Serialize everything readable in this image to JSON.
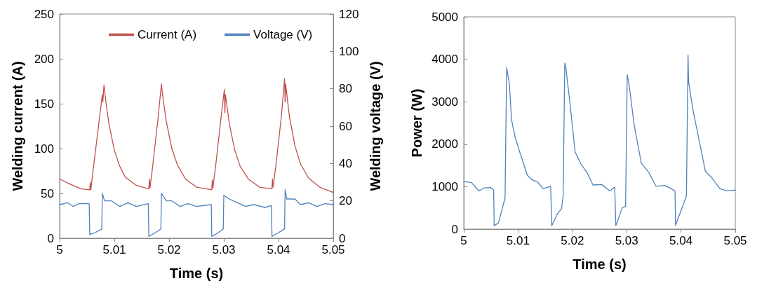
{
  "chart_data": [
    {
      "type": "line",
      "xlabel": "Time (s)",
      "ylabel": "Welding current (A)",
      "y2label": "Welding voltage (V)",
      "xlim": [
        5,
        5.05
      ],
      "xticks": [
        5,
        5.01,
        5.02,
        5.03,
        5.04,
        5.05
      ],
      "ylim": [
        0,
        250
      ],
      "yticks": [
        0,
        50,
        100,
        150,
        200,
        250
      ],
      "y2lim": [
        0,
        120
      ],
      "y2ticks": [
        0,
        20,
        40,
        60,
        80,
        100,
        120
      ],
      "grid": false,
      "legend": "top",
      "marker": "none",
      "line_style": "solid",
      "series": [
        {
          "name": "Current (A)",
          "color": "#c0504d",
          "x": [
            5.0,
            5.002,
            5.004,
            5.0055,
            5.0056,
            5.0057,
            5.006,
            5.007,
            5.0078,
            5.0079,
            5.0081,
            5.0085,
            5.009,
            5.01,
            5.011,
            5.012,
            5.014,
            5.0163,
            5.0164,
            5.0165,
            5.017,
            5.018,
            5.0186,
            5.0188,
            5.0195,
            5.0205,
            5.0215,
            5.023,
            5.025,
            5.0278,
            5.0279,
            5.028,
            5.0285,
            5.0295,
            5.0301,
            5.0302,
            5.0303,
            5.031,
            5.032,
            5.033,
            5.0345,
            5.0365,
            5.0388,
            5.0389,
            5.039,
            5.0395,
            5.0405,
            5.0411,
            5.0412,
            5.0413,
            5.042,
            5.043,
            5.044,
            5.0455,
            5.0475,
            5.05
          ],
          "values": [
            66,
            60,
            55,
            54,
            62,
            54,
            70,
            120,
            160,
            152,
            171,
            150,
            128,
            98,
            80,
            68,
            59,
            55,
            66,
            56,
            80,
            135,
            172,
            160,
            130,
            100,
            82,
            66,
            57,
            54,
            65,
            56,
            80,
            135,
            166,
            140,
            160,
            128,
            98,
            80,
            66,
            57,
            55,
            66,
            57,
            80,
            135,
            178,
            152,
            172,
            135,
            103,
            83,
            67,
            57,
            51
          ]
        },
        {
          "name": "Voltage (V)",
          "color": "#4f81bd",
          "axis": "y2",
          "x": [
            5.0,
            5.0015,
            5.0025,
            5.0035,
            5.0054,
            5.0055,
            5.0065,
            5.0077,
            5.0078,
            5.0082,
            5.0095,
            5.011,
            5.0125,
            5.014,
            5.0162,
            5.0163,
            5.0175,
            5.0185,
            5.0186,
            5.0195,
            5.0205,
            5.022,
            5.0235,
            5.025,
            5.0277,
            5.0278,
            5.029,
            5.0299,
            5.03,
            5.031,
            5.0325,
            5.034,
            5.0355,
            5.0375,
            5.0387,
            5.0388,
            5.04,
            5.0411,
            5.0412,
            5.0415,
            5.043,
            5.044,
            5.0455,
            5.047,
            5.0485,
            5.05
          ],
          "values": [
            18,
            19,
            17,
            18.5,
            18.5,
            2,
            3,
            5,
            24,
            20,
            20,
            17,
            19,
            17,
            18.5,
            1,
            3,
            5,
            24,
            20,
            20,
            17,
            18.5,
            17,
            18,
            1,
            3,
            5,
            23,
            21,
            19,
            17,
            18,
            16.5,
            17.5,
            1,
            3,
            5,
            26,
            21,
            21,
            18,
            19,
            17,
            18.5,
            18
          ]
        }
      ]
    },
    {
      "type": "line",
      "xlabel": "Time (s)",
      "ylabel": "Power (W)",
      "xlim": [
        5,
        5.05
      ],
      "xticks": [
        5,
        5.01,
        5.02,
        5.03,
        5.04,
        5.05
      ],
      "ylim": [
        0,
        5000
      ],
      "yticks": [
        0,
        1000,
        2000,
        3000,
        4000,
        5000
      ],
      "grid": false,
      "legend": false,
      "marker": "none",
      "line_style": "solid",
      "series": [
        {
          "color": "#4f81bd",
          "x": [
            5.0,
            5.0014,
            5.0028,
            5.0037,
            5.0049,
            5.0055,
            5.0056,
            5.0064,
            5.0076,
            5.0079,
            5.0084,
            5.0088,
            5.0095,
            5.0103,
            5.0117,
            5.0126,
            5.0136,
            5.0146,
            5.016,
            5.0162,
            5.0173,
            5.018,
            5.0183,
            5.0186,
            5.0188,
            5.0196,
            5.0205,
            5.0215,
            5.0227,
            5.0238,
            5.0254,
            5.0269,
            5.0278,
            5.028,
            5.0292,
            5.0298,
            5.0301,
            5.0304,
            5.0314,
            5.0327,
            5.0341,
            5.0354,
            5.037,
            5.0381,
            5.0389,
            5.039,
            5.041,
            5.0413,
            5.0414,
            5.0422,
            5.0435,
            5.0445,
            5.0456,
            5.0472,
            5.0485,
            5.05
          ],
          "values": [
            1120,
            1100,
            900,
            970,
            980,
            920,
            80,
            150,
            730,
            3800,
            3420,
            2570,
            2150,
            1820,
            1270,
            1160,
            1110,
            950,
            1010,
            80,
            370,
            480,
            780,
            3910,
            3800,
            2920,
            1820,
            1550,
            1330,
            1040,
            1050,
            900,
            990,
            80,
            510,
            530,
            3630,
            3450,
            2430,
            1550,
            1330,
            1010,
            1030,
            960,
            900,
            90,
            780,
            4100,
            3470,
            2810,
            1990,
            1360,
            1220,
            950,
            900,
            920
          ]
        }
      ]
    }
  ]
}
